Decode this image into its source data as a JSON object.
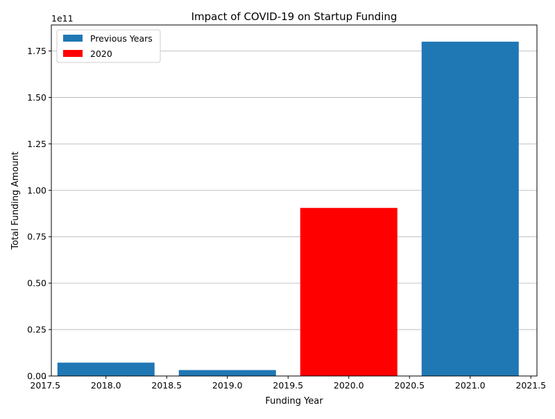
{
  "chart_data": {
    "type": "bar",
    "title": "Impact of COVID-19 on Startup Funding",
    "xlabel": "Funding Year",
    "ylabel": "Total Funding Amount",
    "y_offset_label": "1e11",
    "xlim": [
      2017.55,
      2021.55
    ],
    "ylim": [
      0,
      189000000000.0
    ],
    "x_ticks": [
      2017.5,
      2018.0,
      2018.5,
      2019.0,
      2019.5,
      2020.0,
      2020.5,
      2021.0,
      2021.5
    ],
    "x_tick_labels": [
      "2017.5",
      "2018.0",
      "2018.5",
      "2019.0",
      "2019.5",
      "2020.0",
      "2020.5",
      "2021.0",
      "2021.5"
    ],
    "y_ticks": [
      0,
      25000000000.0,
      50000000000.0,
      75000000000.0,
      100000000000.0,
      125000000000.0,
      150000000000.0,
      175000000000.0
    ],
    "y_tick_labels": [
      "0.00",
      "0.25",
      "0.50",
      "0.75",
      "1.00",
      "1.25",
      "1.50",
      "1.75"
    ],
    "grid": "y",
    "bar_width": 0.8,
    "series": [
      {
        "name": "Previous Years",
        "color": "#1f77b4"
      },
      {
        "name": "2020",
        "color": "#ff0000"
      }
    ],
    "bars": [
      {
        "x": 2018,
        "value": 7200000000.0,
        "series": 0
      },
      {
        "x": 2019,
        "value": 3200000000.0,
        "series": 0
      },
      {
        "x": 2020,
        "value": 90500000000.0,
        "series": 1
      },
      {
        "x": 2021,
        "value": 180000000000.0,
        "series": 0
      }
    ],
    "legend_position": "upper-left"
  }
}
